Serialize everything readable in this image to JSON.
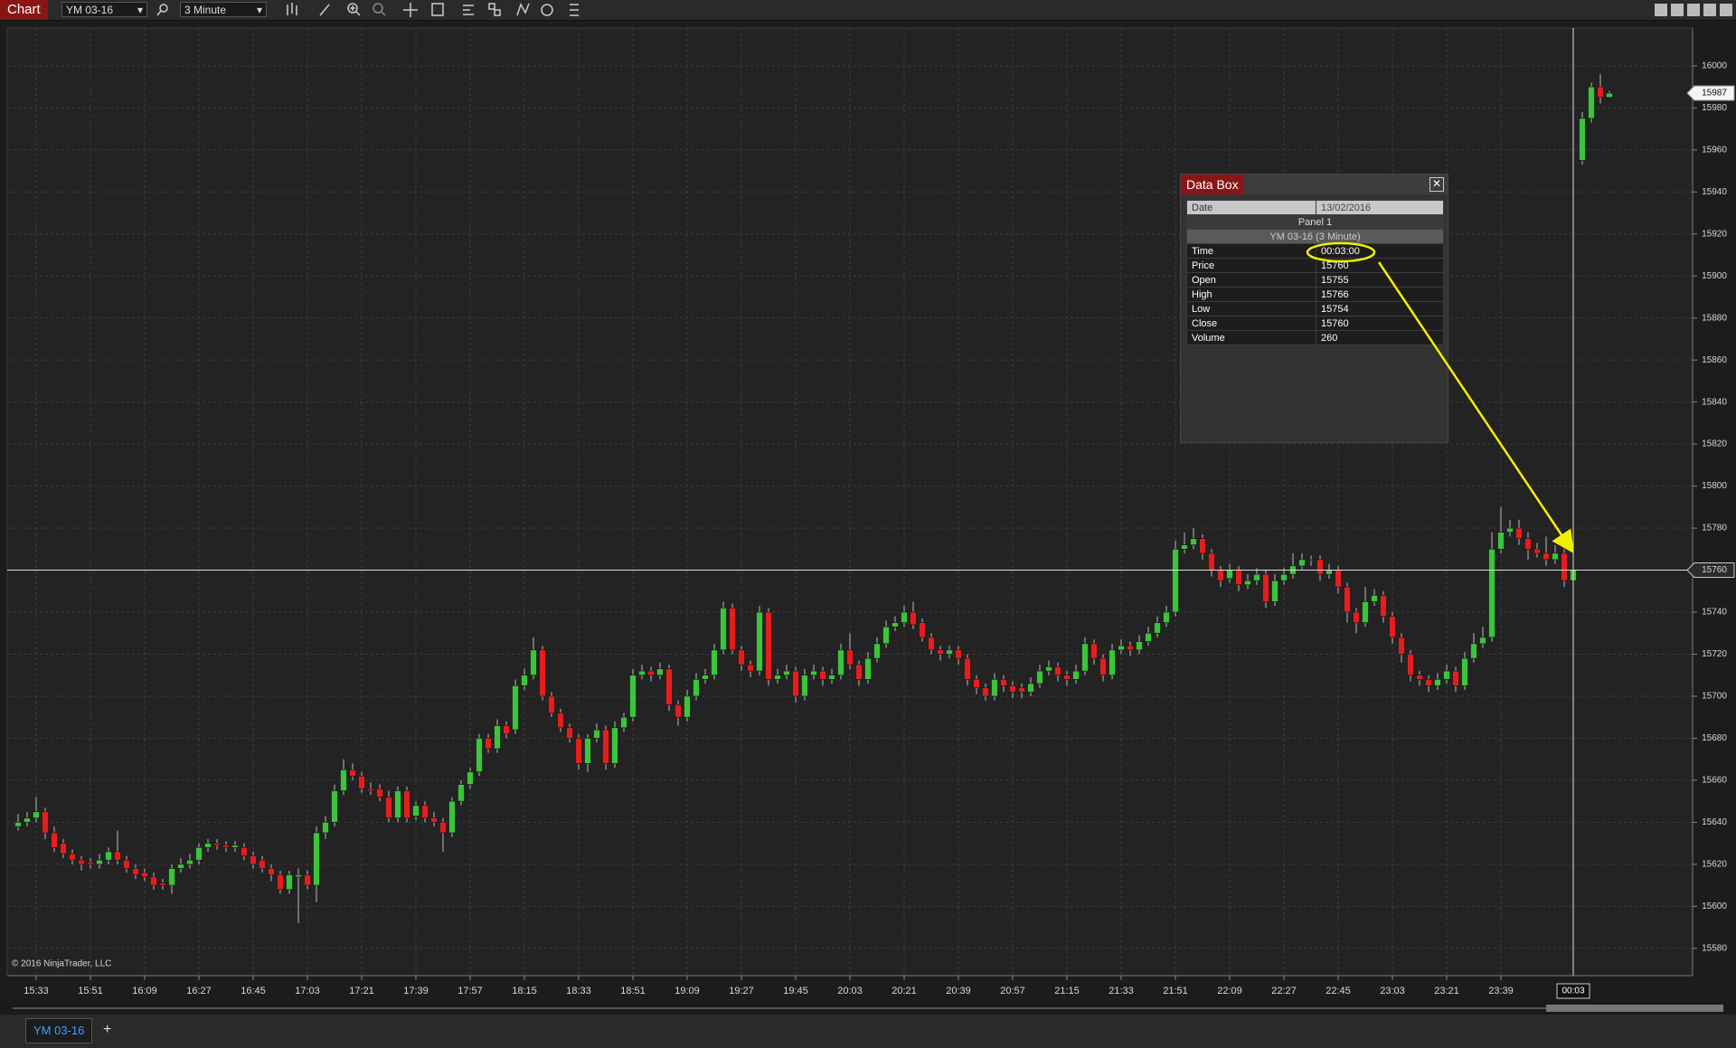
{
  "toolbar": {
    "tab": "Chart",
    "instrument": "YM 03-16",
    "interval": "3 Minute"
  },
  "chart_data": {
    "type": "candlestick",
    "ohlc": [
      [
        15638,
        15644,
        15636,
        15640
      ],
      [
        15640,
        15645,
        15638,
        15642
      ],
      [
        15642,
        15652,
        15640,
        15645
      ],
      [
        15645,
        15647,
        15632,
        15635
      ],
      [
        15635,
        15638,
        15626,
        15628
      ],
      [
        15630,
        15632,
        15623,
        15625
      ],
      [
        15625,
        15627,
        15620,
        15622
      ],
      [
        15622,
        15624,
        15617,
        15620
      ],
      [
        15621,
        15623,
        15618,
        15620
      ],
      [
        15620,
        15625,
        15618,
        15622
      ],
      [
        15622,
        15628,
        15620,
        15626
      ],
      [
        15626,
        15636,
        15620,
        15622
      ],
      [
        15622,
        15624,
        15616,
        15618
      ],
      [
        15618,
        15620,
        15613,
        15615
      ],
      [
        15616,
        15618,
        15612,
        15614
      ],
      [
        15614,
        15616,
        15608,
        15610
      ],
      [
        15611,
        15613,
        15608,
        15610
      ],
      [
        15610,
        15620,
        15606,
        15618
      ],
      [
        15618,
        15623,
        15616,
        15620
      ],
      [
        15620,
        15625,
        15618,
        15622
      ],
      [
        15622,
        15630,
        15620,
        15628
      ],
      [
        15628,
        15632,
        15626,
        15630
      ],
      [
        15630,
        15632,
        15627,
        15629
      ],
      [
        15629,
        15631,
        15626,
        15628
      ],
      [
        15628,
        15631,
        15626,
        15629
      ],
      [
        15628,
        15630,
        15622,
        15624
      ],
      [
        15624,
        15626,
        15618,
        15620
      ],
      [
        15622,
        15624,
        15616,
        15618
      ],
      [
        15618,
        15620,
        15612,
        15615
      ],
      [
        15615,
        15617,
        15606,
        15608
      ],
      [
        15608,
        15617,
        15606,
        15615
      ],
      [
        15614,
        15618,
        15592,
        15615
      ],
      [
        15615,
        15617,
        15608,
        15610
      ],
      [
        15610,
        15638,
        15602,
        15635
      ],
      [
        15635,
        15643,
        15632,
        15640
      ],
      [
        15640,
        15658,
        15638,
        15655
      ],
      [
        15655,
        15670,
        15653,
        15665
      ],
      [
        15665,
        15668,
        15660,
        15662
      ],
      [
        15662,
        15664,
        15654,
        15656
      ],
      [
        15656,
        15659,
        15653,
        15655
      ],
      [
        15656,
        15658,
        15650,
        15652
      ],
      [
        15652,
        15655,
        15640,
        15642
      ],
      [
        15642,
        15657,
        15640,
        15655
      ],
      [
        15655,
        15657,
        15640,
        15642
      ],
      [
        15643,
        15650,
        15641,
        15648
      ],
      [
        15648,
        15650,
        15640,
        15642
      ],
      [
        15642,
        15645,
        15638,
        15640
      ],
      [
        15640,
        15642,
        15626,
        15635
      ],
      [
        15635,
        15652,
        15633,
        15650
      ],
      [
        15650,
        15660,
        15648,
        15658
      ],
      [
        15658,
        15666,
        15656,
        15664
      ],
      [
        15664,
        15682,
        15662,
        15680
      ],
      [
        15680,
        15682,
        15673,
        15675
      ],
      [
        15675,
        15689,
        15673,
        15686
      ],
      [
        15686,
        15688,
        15680,
        15682
      ],
      [
        15684,
        15708,
        15682,
        15705
      ],
      [
        15705,
        15713,
        15703,
        15710
      ],
      [
        15710,
        15728,
        15708,
        15722
      ],
      [
        15722,
        15724,
        15698,
        15700
      ],
      [
        15700,
        15702,
        15690,
        15692
      ],
      [
        15692,
        15694,
        15683,
        15685
      ],
      [
        15685,
        15687,
        15678,
        15680
      ],
      [
        15680,
        15682,
        15665,
        15668
      ],
      [
        15668,
        15682,
        15664,
        15680
      ],
      [
        15680,
        15687,
        15678,
        15684
      ],
      [
        15684,
        15686,
        15665,
        15668
      ],
      [
        15668,
        15688,
        15666,
        15685
      ],
      [
        15685,
        15692,
        15683,
        15690
      ],
      [
        15690,
        15713,
        15688,
        15710
      ],
      [
        15710,
        15715,
        15708,
        15712
      ],
      [
        15712,
        15714,
        15707,
        15710
      ],
      [
        15710,
        15716,
        15708,
        15713
      ],
      [
        15713,
        15715,
        15693,
        15696
      ],
      [
        15696,
        15698,
        15686,
        15690
      ],
      [
        15690,
        15703,
        15688,
        15700
      ],
      [
        15700,
        15711,
        15698,
        15708
      ],
      [
        15708,
        15713,
        15706,
        15710
      ],
      [
        15710,
        15725,
        15708,
        15722
      ],
      [
        15722,
        15745,
        15720,
        15742
      ],
      [
        15742,
        15744,
        15720,
        15722
      ],
      [
        15722,
        15724,
        15712,
        15715
      ],
      [
        15715,
        15717,
        15709,
        15712
      ],
      [
        15712,
        15743,
        15710,
        15740
      ],
      [
        15740,
        15742,
        15705,
        15708
      ],
      [
        15708,
        15713,
        15706,
        15710
      ],
      [
        15710,
        15715,
        15708,
        15712
      ],
      [
        15712,
        15714,
        15697,
        15700
      ],
      [
        15700,
        15713,
        15698,
        15710
      ],
      [
        15710,
        15715,
        15708,
        15712
      ],
      [
        15712,
        15714,
        15705,
        15708
      ],
      [
        15708,
        15713,
        15706,
        15710
      ],
      [
        15710,
        15725,
        15708,
        15722
      ],
      [
        15722,
        15730,
        15713,
        15715
      ],
      [
        15715,
        15717,
        15705,
        15708
      ],
      [
        15708,
        15721,
        15706,
        15718
      ],
      [
        15718,
        15728,
        15716,
        15725
      ],
      [
        15725,
        15736,
        15723,
        15733
      ],
      [
        15733,
        15738,
        15731,
        15735
      ],
      [
        15735,
        15743,
        15733,
        15740
      ],
      [
        15740,
        15745,
        15732,
        15734
      ],
      [
        15735,
        15737,
        15726,
        15728
      ],
      [
        15728,
        15730,
        15720,
        15722
      ],
      [
        15722,
        15724,
        15717,
        15720
      ],
      [
        15720,
        15724,
        15718,
        15722
      ],
      [
        15722,
        15724,
        15715,
        15718
      ],
      [
        15718,
        15720,
        15705,
        15708
      ],
      [
        15708,
        15710,
        15701,
        15704
      ],
      [
        15704,
        15706,
        15698,
        15700
      ],
      [
        15700,
        15711,
        15698,
        15708
      ],
      [
        15708,
        15710,
        15702,
        15705
      ],
      [
        15705,
        15707,
        15699,
        15702
      ],
      [
        15704,
        15706,
        15699,
        15702
      ],
      [
        15702,
        15709,
        15700,
        15706
      ],
      [
        15706,
        15715,
        15704,
        15712
      ],
      [
        15712,
        15717,
        15710,
        15714
      ],
      [
        15714,
        15716,
        15707,
        15710
      ],
      [
        15710,
        15712,
        15705,
        15708
      ],
      [
        15708,
        15715,
        15706,
        15712
      ],
      [
        15712,
        15728,
        15710,
        15725
      ],
      [
        15725,
        15727,
        15715,
        15718
      ],
      [
        15718,
        15720,
        15707,
        15710
      ],
      [
        15710,
        15725,
        15708,
        15722
      ],
      [
        15722,
        15727,
        15720,
        15724
      ],
      [
        15724,
        15726,
        15719,
        15722
      ],
      [
        15722,
        15729,
        15720,
        15726
      ],
      [
        15726,
        15733,
        15724,
        15730
      ],
      [
        15730,
        15738,
        15728,
        15735
      ],
      [
        15735,
        15743,
        15733,
        15740
      ],
      [
        15740,
        15774,
        15738,
        15770
      ],
      [
        15770,
        15778,
        15768,
        15772
      ],
      [
        15772,
        15780,
        15770,
        15775
      ],
      [
        15775,
        15777,
        15765,
        15768
      ],
      [
        15768,
        15770,
        15757,
        15760
      ],
      [
        15760,
        15762,
        15752,
        15755
      ],
      [
        15756,
        15763,
        15754,
        15760
      ],
      [
        15760,
        15762,
        15750,
        15753
      ],
      [
        15753,
        15758,
        15751,
        15755
      ],
      [
        15755,
        15761,
        15753,
        15758
      ],
      [
        15758,
        15760,
        15742,
        15745
      ],
      [
        15745,
        15758,
        15743,
        15755
      ],
      [
        15755,
        15761,
        15753,
        15758
      ],
      [
        15758,
        15768,
        15756,
        15762
      ],
      [
        15762,
        15768,
        15760,
        15765
      ],
      [
        15765,
        15767,
        15762,
        15765
      ],
      [
        15765,
        15767,
        15755,
        15758
      ],
      [
        15758,
        15763,
        15756,
        15760
      ],
      [
        15760,
        15762,
        15749,
        15752
      ],
      [
        15752,
        15754,
        15735,
        15740
      ],
      [
        15740,
        15742,
        15730,
        15735
      ],
      [
        15735,
        15752,
        15733,
        15745
      ],
      [
        15745,
        15751,
        15743,
        15748
      ],
      [
        15748,
        15750,
        15735,
        15738
      ],
      [
        15738,
        15740,
        15725,
        15728
      ],
      [
        15728,
        15730,
        15716,
        15720
      ],
      [
        15720,
        15722,
        15707,
        15710
      ],
      [
        15710,
        15712,
        15705,
        15708
      ],
      [
        15708,
        15710,
        15702,
        15705
      ],
      [
        15705,
        15711,
        15703,
        15708
      ],
      [
        15708,
        15715,
        15706,
        15712
      ],
      [
        15712,
        15714,
        15702,
        15705
      ],
      [
        15705,
        15721,
        15703,
        15718
      ],
      [
        15718,
        15730,
        15716,
        15725
      ],
      [
        15725,
        15733,
        15723,
        15728
      ],
      [
        15728,
        15778,
        15726,
        15770
      ],
      [
        15770,
        15790,
        15768,
        15778
      ],
      [
        15778,
        15784,
        15776,
        15780
      ],
      [
        15780,
        15784,
        15772,
        15775
      ],
      [
        15775,
        15778,
        15765,
        15770
      ],
      [
        15770,
        15773,
        15766,
        15768
      ],
      [
        15768,
        15776,
        15762,
        15765
      ],
      [
        15765,
        15772,
        15763,
        15768
      ],
      [
        15768,
        15770,
        15752,
        15755
      ],
      [
        15755,
        15766,
        15754,
        15760
      ],
      [
        15955,
        15978,
        15953,
        15975
      ],
      [
        15975,
        15992,
        15973,
        15990
      ],
      [
        15990,
        15996,
        15982,
        15985
      ],
      [
        15985,
        15988,
        15985,
        15987
      ]
    ],
    "xlim": [
      -1.2,
      185.2
    ],
    "ylim": [
      15567,
      16018
    ],
    "yticks": [
      15580,
      15600,
      15620,
      15640,
      15660,
      15680,
      15700,
      15720,
      15740,
      15760,
      15780,
      15800,
      15820,
      15840,
      15860,
      15880,
      15900,
      15920,
      15940,
      15960,
      15980,
      16000
    ],
    "xticks": [
      {
        "value": 2,
        "label": "15:33"
      },
      {
        "value": 8,
        "label": "15:51"
      },
      {
        "value": 14,
        "label": "16:09"
      },
      {
        "value": 20,
        "label": "16:27"
      },
      {
        "value": 26,
        "label": "16:45"
      },
      {
        "value": 32,
        "label": "17:03"
      },
      {
        "value": 38,
        "label": "17:21"
      },
      {
        "value": 44,
        "label": "17:39"
      },
      {
        "value": 50,
        "label": "17:57"
      },
      {
        "value": 56,
        "label": "18:15"
      },
      {
        "value": 62,
        "label": "18:33"
      },
      {
        "value": 68,
        "label": "18:51"
      },
      {
        "value": 74,
        "label": "19:09"
      },
      {
        "value": 80,
        "label": "19:27"
      },
      {
        "value": 86,
        "label": "19:45"
      },
      {
        "value": 92,
        "label": "20:03"
      },
      {
        "value": 98,
        "label": "20:21"
      },
      {
        "value": 104,
        "label": "20:39"
      },
      {
        "value": 110,
        "label": "20:57"
      },
      {
        "value": 116,
        "label": "21:15"
      },
      {
        "value": 122,
        "label": "21:33"
      },
      {
        "value": 128,
        "label": "21:51"
      },
      {
        "value": 134,
        "label": "22:09"
      },
      {
        "value": 140,
        "label": "22:27"
      },
      {
        "value": 146,
        "label": "22:45"
      },
      {
        "value": 152,
        "label": "23:03"
      },
      {
        "value": 158,
        "label": "23:21"
      },
      {
        "value": 164,
        "label": "23:39"
      }
    ],
    "grid": true,
    "up_color": "#3cc43c",
    "down_color": "#e41e1e",
    "crosshair": {
      "x": {
        "value": 172,
        "label": "00:03"
      },
      "y": 15760
    },
    "last_price": 15987,
    "copyright": "© 2016 NinjaTrader, LLC"
  },
  "data_box": {
    "title": "Data Box",
    "date_label": "Date",
    "date": "13/02/2016",
    "panel": "Panel 1",
    "series": "YM 03-16 (3 Minute)",
    "rows": [
      [
        "Time",
        "00:03:00"
      ],
      [
        "Price",
        "15760"
      ],
      [
        "Open",
        "15755"
      ],
      [
        "High",
        "15766"
      ],
      [
        "Low",
        "15754"
      ],
      [
        "Close",
        "15760"
      ],
      [
        "Volume",
        "260"
      ]
    ]
  },
  "tabs": {
    "active": "YM 03-16",
    "add": "+"
  }
}
